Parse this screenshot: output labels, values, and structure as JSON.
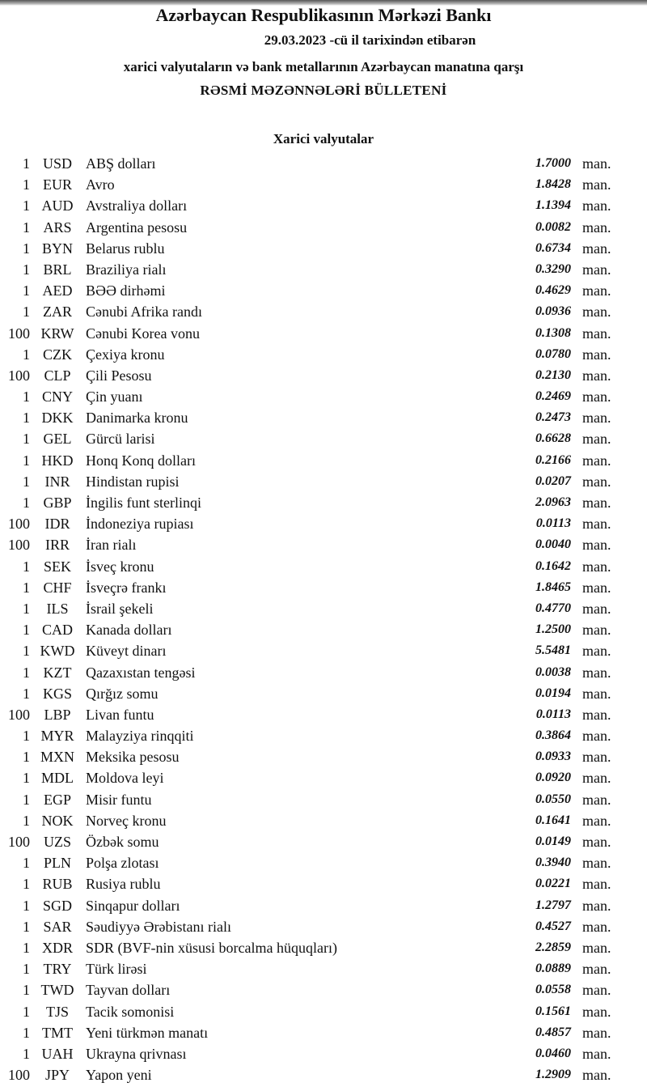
{
  "header": {
    "bank": "Azərbaycan Respublikasının Mərkəzi Bankı",
    "date_line": "29.03.2023 -cü il tarixindən etibarən",
    "subtitle": "xarici valyutaların və bank metallarının Azərbaycan manatına qarşı",
    "title": "RƏSMİ MƏZƏNNƏLƏRİ BÜLLETENİ",
    "section": "Xarici valyutalar"
  },
  "unit": "man.",
  "rates": [
    {
      "n": "1",
      "code": "USD",
      "name": "ABŞ dolları",
      "value": "1.7000"
    },
    {
      "n": "1",
      "code": "EUR",
      "name": "Avro",
      "value": "1.8428"
    },
    {
      "n": "1",
      "code": "AUD",
      "name": "Avstraliya dolları",
      "value": "1.1394"
    },
    {
      "n": "1",
      "code": "ARS",
      "name": "Argentina pesosu",
      "value": "0.0082"
    },
    {
      "n": "1",
      "code": "BYN",
      "name": "Belarus rublu",
      "value": "0.6734"
    },
    {
      "n": "1",
      "code": "BRL",
      "name": "Braziliya rialı",
      "value": "0.3290"
    },
    {
      "n": "1",
      "code": "AED",
      "name": "BƏƏ dirhəmi",
      "value": "0.4629"
    },
    {
      "n": "1",
      "code": "ZAR",
      "name": "Cənubi Afrika randı",
      "value": "0.0936"
    },
    {
      "n": "100",
      "code": "KRW",
      "name": "Cənubi Korea vonu",
      "value": "0.1308"
    },
    {
      "n": "1",
      "code": "CZK",
      "name": "Çexiya kronu",
      "value": "0.0780"
    },
    {
      "n": "100",
      "code": "CLP",
      "name": "Çili Pesosu",
      "value": "0.2130"
    },
    {
      "n": "1",
      "code": "CNY",
      "name": "Çin yuanı",
      "value": "0.2469"
    },
    {
      "n": "1",
      "code": "DKK",
      "name": "Danimarka kronu",
      "value": "0.2473"
    },
    {
      "n": "1",
      "code": "GEL",
      "name": "Gürcü larisi",
      "value": "0.6628"
    },
    {
      "n": "1",
      "code": "HKD",
      "name": "Honq Konq dolları",
      "value": "0.2166"
    },
    {
      "n": "1",
      "code": "INR",
      "name": "Hindistan rupisi",
      "value": "0.0207"
    },
    {
      "n": "1",
      "code": "GBP",
      "name": "İngilis funt sterlinqi",
      "value": "2.0963"
    },
    {
      "n": "100",
      "code": "IDR",
      "name": "İndoneziya rupiası",
      "value": "0.0113"
    },
    {
      "n": "100",
      "code": "IRR",
      "name": "İran rialı",
      "value": "0.0040"
    },
    {
      "n": "1",
      "code": "SEK",
      "name": "İsveç kronu",
      "value": "0.1642"
    },
    {
      "n": "1",
      "code": "CHF",
      "name": "İsveçrə frankı",
      "value": "1.8465"
    },
    {
      "n": "1",
      "code": "ILS",
      "name": "İsrail şekeli",
      "value": "0.4770"
    },
    {
      "n": "1",
      "code": "CAD",
      "name": "Kanada dolları",
      "value": "1.2500"
    },
    {
      "n": "1",
      "code": "KWD",
      "name": "Küveyt dinarı",
      "value": "5.5481"
    },
    {
      "n": "1",
      "code": "KZT",
      "name": "Qazaxıstan tengəsi",
      "value": "0.0038"
    },
    {
      "n": "1",
      "code": "KGS",
      "name": "Qırğız somu",
      "value": "0.0194"
    },
    {
      "n": "100",
      "code": "LBP",
      "name": "Livan funtu",
      "value": "0.0113"
    },
    {
      "n": "1",
      "code": "MYR",
      "name": "Malayziya rinqqiti",
      "value": "0.3864"
    },
    {
      "n": "1",
      "code": "MXN",
      "name": "Meksika pesosu",
      "value": "0.0933"
    },
    {
      "n": "1",
      "code": "MDL",
      "name": "Moldova leyi",
      "value": "0.0920"
    },
    {
      "n": "1",
      "code": "EGP",
      "name": "Misir funtu",
      "value": "0.0550"
    },
    {
      "n": "1",
      "code": "NOK",
      "name": "Norveç kronu",
      "value": "0.1641"
    },
    {
      "n": "100",
      "code": "UZS",
      "name": "Özbək somu",
      "value": "0.0149"
    },
    {
      "n": "1",
      "code": "PLN",
      "name": "Polşa zlotası",
      "value": "0.3940"
    },
    {
      "n": "1",
      "code": "RUB",
      "name": "Rusiya rublu",
      "value": "0.0221"
    },
    {
      "n": "1",
      "code": "SGD",
      "name": "Sinqapur dolları",
      "value": "1.2797"
    },
    {
      "n": "1",
      "code": "SAR",
      "name": "Səudiyyə Ərəbistanı rialı",
      "value": "0.4527"
    },
    {
      "n": "1",
      "code": "XDR",
      "name": "SDR (BVF-nin xüsusi borcalma hüquqları)",
      "value": "2.2859"
    },
    {
      "n": "1",
      "code": "TRY",
      "name": "Türk lirəsi",
      "value": "0.0889"
    },
    {
      "n": "1",
      "code": "TWD",
      "name": "Tayvan dolları",
      "value": "0.0558"
    },
    {
      "n": "1",
      "code": "TJS",
      "name": "Tacik somonisi",
      "value": "0.1561"
    },
    {
      "n": "1",
      "code": "TMT",
      "name": "Yeni türkmən manatı",
      "value": "0.4857"
    },
    {
      "n": "1",
      "code": "UAH",
      "name": "Ukrayna qrivnası",
      "value": "0.0460"
    },
    {
      "n": "100",
      "code": "JPY",
      "name": "Yapon yeni",
      "value": "1.2909"
    }
  ]
}
